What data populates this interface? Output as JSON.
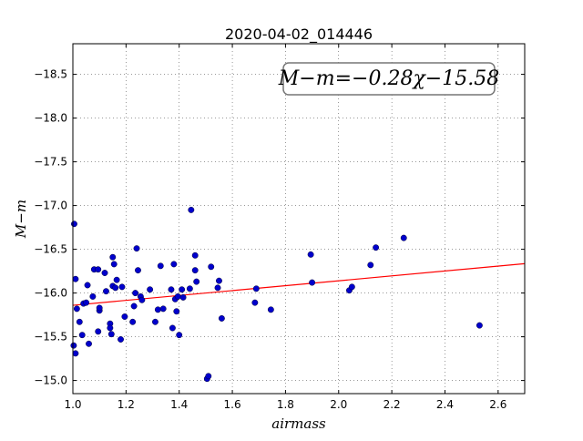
{
  "chart_data": {
    "type": "scatter",
    "title": "2020-04-02_014446",
    "xlabel": "airmass",
    "ylabel": "M−m",
    "xlim": [
      1.0,
      2.7
    ],
    "ylim": [
      -18.85,
      -14.85
    ],
    "y_inverted": true,
    "grid": true,
    "xticks": [
      1.0,
      1.2,
      1.4,
      1.6,
      1.8,
      2.0,
      2.2,
      2.4,
      2.6
    ],
    "xtick_labels": [
      "1.0",
      "1.2",
      "1.4",
      "1.6",
      "1.8",
      "2.0",
      "2.2",
      "2.4",
      "2.6"
    ],
    "yticks": [
      -15.0,
      -15.5,
      -16.0,
      -16.5,
      -17.0,
      -17.5,
      -18.0,
      -18.5
    ],
    "ytick_labels": [
      "−15.0",
      "−15.5",
      "−16.0",
      "−16.5",
      "−17.0",
      "−17.5",
      "−18.0",
      "−18.5"
    ],
    "annotation": "M−m=−0.28χ−15.58",
    "annotation_position": "top-right",
    "point_color": "#0000cc",
    "line_color": "#ff0000",
    "fit": {
      "slope": -0.28,
      "intercept": -15.58
    },
    "points": [
      {
        "x": 1.003,
        "y": -15.4
      },
      {
        "x": 1.005,
        "y": -16.79
      },
      {
        "x": 1.01,
        "y": -15.31
      },
      {
        "x": 1.01,
        "y": -16.16
      },
      {
        "x": 1.015,
        "y": -15.82
      },
      {
        "x": 1.025,
        "y": -15.67
      },
      {
        "x": 1.035,
        "y": -15.52
      },
      {
        "x": 1.04,
        "y": -15.88
      },
      {
        "x": 1.05,
        "y": -15.89
      },
      {
        "x": 1.055,
        "y": -16.09
      },
      {
        "x": 1.06,
        "y": -15.42
      },
      {
        "x": 1.075,
        "y": -15.96
      },
      {
        "x": 1.08,
        "y": -16.27
      },
      {
        "x": 1.095,
        "y": -16.27
      },
      {
        "x": 1.095,
        "y": -15.56
      },
      {
        "x": 1.1,
        "y": -15.8
      },
      {
        "x": 1.1,
        "y": -15.83
      },
      {
        "x": 1.12,
        "y": -16.23
      },
      {
        "x": 1.125,
        "y": -16.02
      },
      {
        "x": 1.14,
        "y": -15.65
      },
      {
        "x": 1.14,
        "y": -15.6
      },
      {
        "x": 1.145,
        "y": -15.53
      },
      {
        "x": 1.15,
        "y": -16.41
      },
      {
        "x": 1.15,
        "y": -16.08
      },
      {
        "x": 1.155,
        "y": -16.33
      },
      {
        "x": 1.16,
        "y": -16.06
      },
      {
        "x": 1.165,
        "y": -16.15
      },
      {
        "x": 1.18,
        "y": -15.47
      },
      {
        "x": 1.185,
        "y": -16.07
      },
      {
        "x": 1.195,
        "y": -15.73
      },
      {
        "x": 1.225,
        "y": -15.67
      },
      {
        "x": 1.23,
        "y": -15.85
      },
      {
        "x": 1.235,
        "y": -16.0
      },
      {
        "x": 1.24,
        "y": -16.51
      },
      {
        "x": 1.245,
        "y": -16.26
      },
      {
        "x": 1.255,
        "y": -15.96
      },
      {
        "x": 1.26,
        "y": -15.92
      },
      {
        "x": 1.29,
        "y": -16.04
      },
      {
        "x": 1.31,
        "y": -15.67
      },
      {
        "x": 1.32,
        "y": -15.81
      },
      {
        "x": 1.33,
        "y": -16.31
      },
      {
        "x": 1.34,
        "y": -15.82
      },
      {
        "x": 1.37,
        "y": -16.04
      },
      {
        "x": 1.375,
        "y": -15.6
      },
      {
        "x": 1.38,
        "y": -16.33
      },
      {
        "x": 1.385,
        "y": -15.93
      },
      {
        "x": 1.39,
        "y": -15.79
      },
      {
        "x": 1.395,
        "y": -15.96
      },
      {
        "x": 1.4,
        "y": -15.52
      },
      {
        "x": 1.41,
        "y": -16.04
      },
      {
        "x": 1.415,
        "y": -15.95
      },
      {
        "x": 1.44,
        "y": -16.05
      },
      {
        "x": 1.445,
        "y": -16.95
      },
      {
        "x": 1.46,
        "y": -16.26
      },
      {
        "x": 1.46,
        "y": -16.43
      },
      {
        "x": 1.465,
        "y": -16.13
      },
      {
        "x": 1.505,
        "y": -15.02
      },
      {
        "x": 1.51,
        "y": -15.05
      },
      {
        "x": 1.52,
        "y": -16.3
      },
      {
        "x": 1.545,
        "y": -16.06
      },
      {
        "x": 1.55,
        "y": -16.14
      },
      {
        "x": 1.56,
        "y": -15.71
      },
      {
        "x": 1.685,
        "y": -15.89
      },
      {
        "x": 1.69,
        "y": -16.05
      },
      {
        "x": 1.745,
        "y": -15.81
      },
      {
        "x": 1.895,
        "y": -16.44
      },
      {
        "x": 1.9,
        "y": -16.12
      },
      {
        "x": 2.04,
        "y": -16.03
      },
      {
        "x": 2.05,
        "y": -16.07
      },
      {
        "x": 2.12,
        "y": -16.32
      },
      {
        "x": 2.14,
        "y": -16.52
      },
      {
        "x": 2.245,
        "y": -16.63
      },
      {
        "x": 2.53,
        "y": -15.63
      }
    ]
  }
}
